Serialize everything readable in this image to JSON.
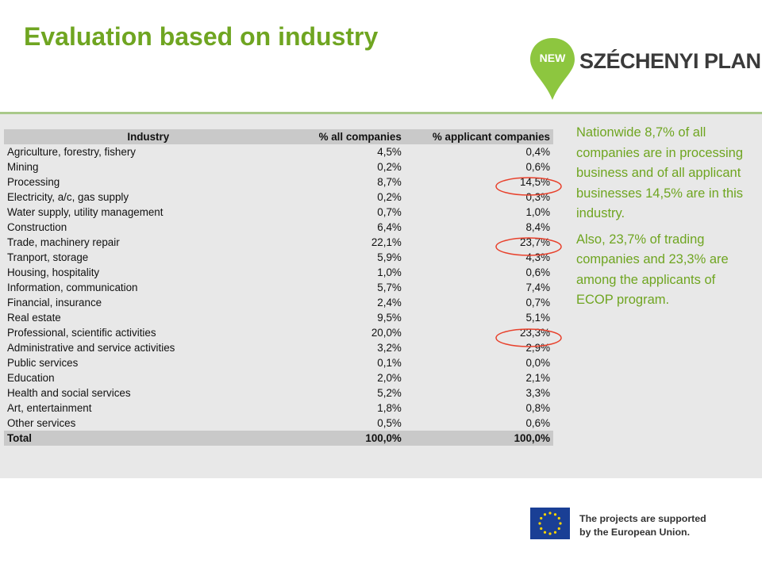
{
  "slide": {
    "title": "Evaluation based on industry",
    "colors": {
      "accent": "#6fa521",
      "panel": "#e8e8e8",
      "header": "#c9c9c9",
      "highlight": "#e8412c"
    }
  },
  "logo": {
    "badge": "NEW",
    "brand": "SZÉCHENYI PLAN",
    "icon": "map-pin-icon"
  },
  "table": {
    "headers": [
      "Industry",
      "% all companies",
      "% applicant companies"
    ],
    "rows": [
      [
        "Agriculture, forestry, fishery",
        "4,5%",
        "0,4%"
      ],
      [
        "Mining",
        "0,2%",
        "0,6%"
      ],
      [
        "Processing",
        "8,7%",
        "14,5%"
      ],
      [
        "Electricity, a/c, gas supply",
        "0,2%",
        "0,3%"
      ],
      [
        "Water supply, utility management",
        "0,7%",
        "1,0%"
      ],
      [
        "Construction",
        "6,4%",
        "8,4%"
      ],
      [
        "Trade, machinery repair",
        "22,1%",
        "23,7%"
      ],
      [
        "Tranport, storage",
        "5,9%",
        "4,3%"
      ],
      [
        "Housing, hospitality",
        "1,0%",
        "0,6%"
      ],
      [
        "Information, communication",
        "5,7%",
        "7,4%"
      ],
      [
        "Financial, insurance",
        "2,4%",
        "0,7%"
      ],
      [
        "Real estate",
        "9,5%",
        "5,1%"
      ],
      [
        "Professional, scientific activities",
        "20,0%",
        "23,3%"
      ],
      [
        "Administrative and service activities",
        "3,2%",
        "2,9%"
      ],
      [
        "Public services",
        "0,1%",
        "0,0%"
      ],
      [
        "Education",
        "2,0%",
        "2,1%"
      ],
      [
        "Health and social services",
        "5,2%",
        "3,3%"
      ],
      [
        "Art, entertainment",
        "1,8%",
        "0,8%"
      ],
      [
        "Other services",
        "0,5%",
        "0,6%"
      ]
    ],
    "total": [
      "Total",
      "100,0%",
      "100,0%"
    ],
    "highlighted_rows": [
      2,
      6,
      12
    ]
  },
  "sidebar": {
    "paragraphs": [
      "Nationwide 8,7% of all companies are in processing business and of all applicant businesses 14,5% are in this industry.",
      "Also, 23,7% of trading companies and 23,3% are among the applicants of ECOP program."
    ]
  },
  "footer": {
    "eu_line1": "The projects are supported",
    "eu_line2": "by the European Union.",
    "icon": "eu-flag-icon"
  }
}
